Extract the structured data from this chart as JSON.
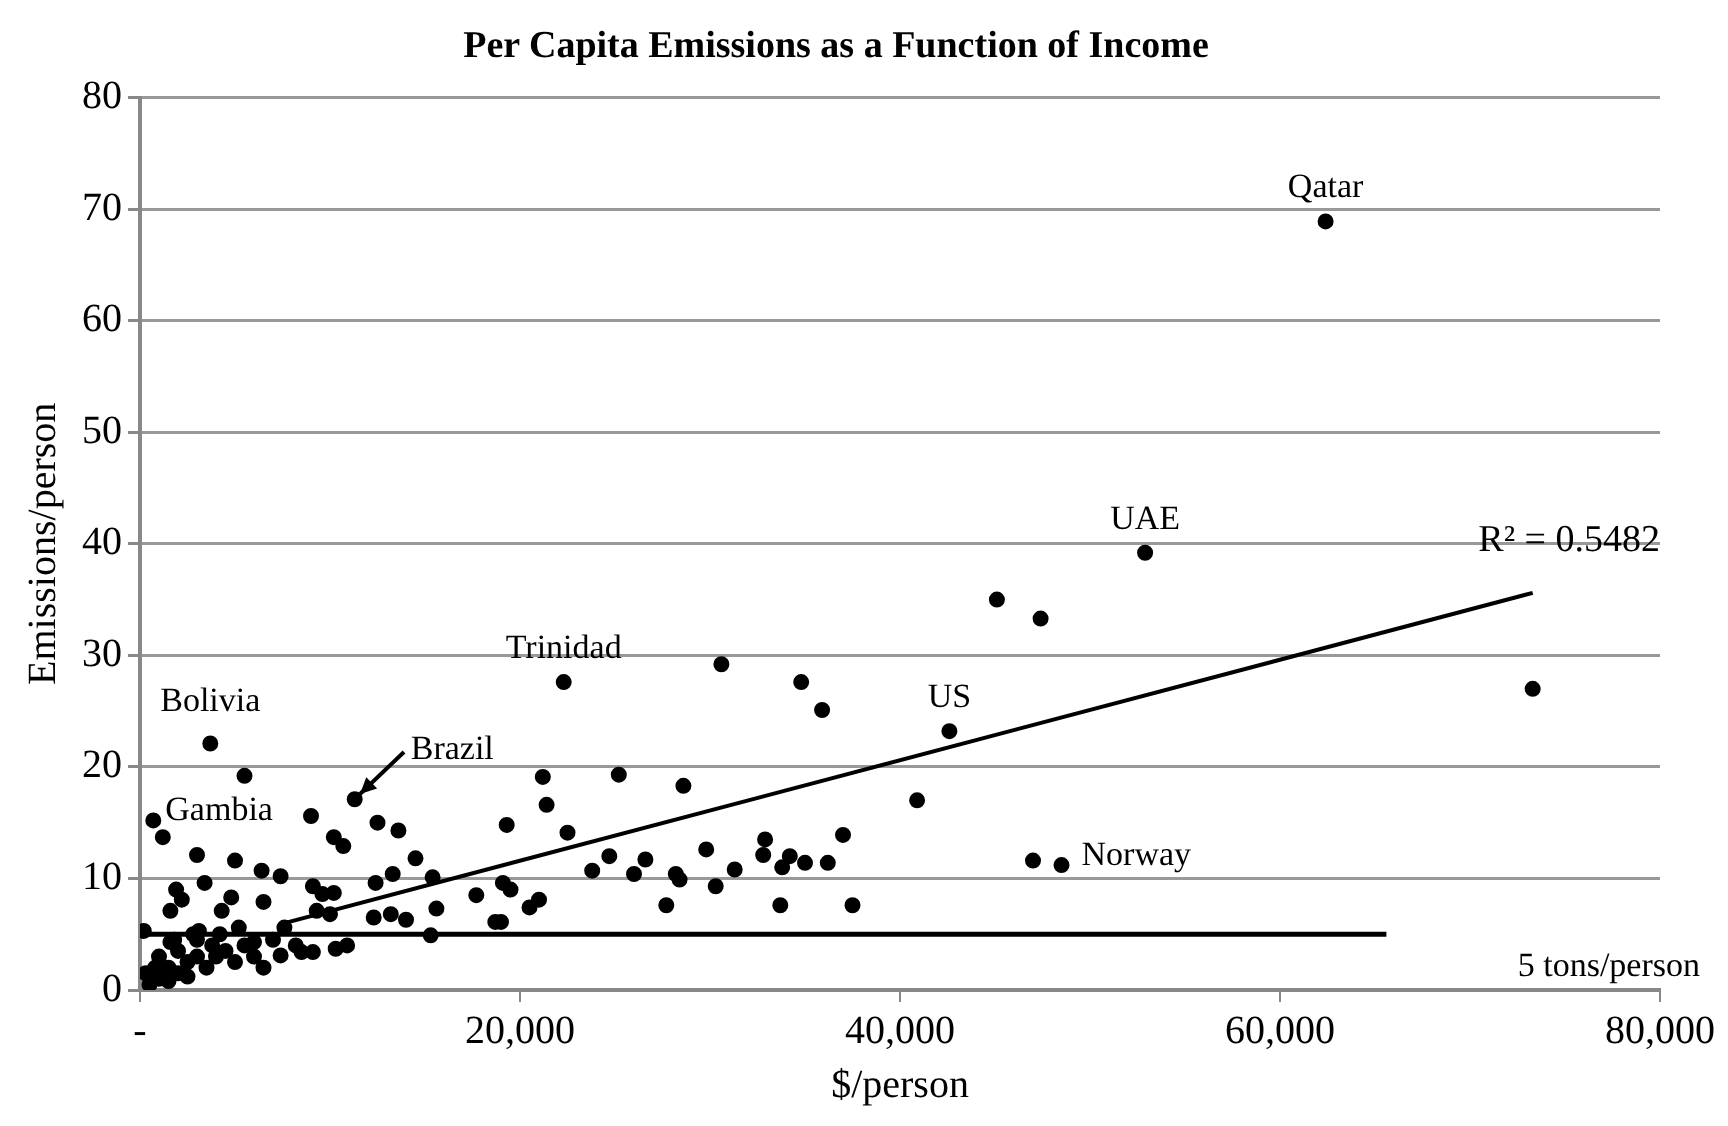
{
  "chart_data": {
    "type": "scatter",
    "title": "Per Capita Emissions as a Function of Income",
    "xlabel": "$/person",
    "ylabel": "Emissions/person",
    "xlim": [
      0,
      80000
    ],
    "xticks": [
      {
        "value": 0,
        "label": "-"
      },
      {
        "value": 20000,
        "label": "20,000"
      },
      {
        "value": 40000,
        "label": "40,000"
      },
      {
        "value": 60000,
        "label": "60,000"
      },
      {
        "value": 80000,
        "label": "80,000"
      }
    ],
    "ylim": [
      0,
      80
    ],
    "yticks": [
      0,
      10,
      20,
      30,
      40,
      50,
      60,
      70,
      80
    ],
    "grid": "y",
    "legend": false,
    "series": [
      {
        "color": "#000000",
        "marker": "circle",
        "x": [
          62400,
          52900,
          45100,
          47400,
          73300,
          42600,
          40900,
          47000,
          48500,
          37500,
          22300,
          30600,
          34800,
          35900,
          21200,
          25200,
          28600,
          21400,
          19300,
          22500,
          24700,
          26600,
          23800,
          26000,
          28200,
          28400,
          29800,
          31300,
          30300,
          27700,
          32900,
          32800,
          33800,
          34200,
          35000,
          36200,
          37000,
          33700,
          17700,
          19100,
          19500,
          20500,
          21000,
          18700,
          19000,
          3700,
          5500,
          11300,
          700,
          9000,
          1200,
          10200,
          10700,
          12500,
          13600,
          3000,
          5000,
          6400,
          7400,
          14500,
          3400,
          1900,
          2200,
          1600,
          4800,
          4300,
          6500,
          9100,
          9600,
          10200,
          9300,
          10000,
          12400,
          13300,
          15400,
          12300,
          13200,
          14000,
          15600,
          15300,
          200,
          3100,
          5200,
          7600,
          1600,
          3800,
          6000,
          8200,
          9100,
          10300,
          10900,
          7400,
          8500,
          1000,
          1500,
          2000,
          2500,
          3000,
          500,
          1000,
          2000,
          3500,
          4000,
          800,
          1500,
          2500,
          3000,
          4500,
          5000,
          6000,
          300,
          1800,
          2800,
          4200,
          5500,
          7000,
          6500
        ],
        "values": [
          68.9,
          39.2,
          35.0,
          33.3,
          27.0,
          23.2,
          17.0,
          11.6,
          11.2,
          7.6,
          27.6,
          29.2,
          27.6,
          25.1,
          19.1,
          19.3,
          18.3,
          16.6,
          14.8,
          14.1,
          12.0,
          11.7,
          10.7,
          10.4,
          10.4,
          9.9,
          12.6,
          10.8,
          9.3,
          7.6,
          13.5,
          12.1,
          11.0,
          12.0,
          11.4,
          11.4,
          13.9,
          7.6,
          8.5,
          9.6,
          9.0,
          7.4,
          8.1,
          6.1,
          6.1,
          22.1,
          19.2,
          17.1,
          15.2,
          15.6,
          13.7,
          13.7,
          12.9,
          15.0,
          14.3,
          12.1,
          11.6,
          10.7,
          10.2,
          11.8,
          9.6,
          9.0,
          8.1,
          7.1,
          8.3,
          7.1,
          7.9,
          9.3,
          8.6,
          8.7,
          7.1,
          6.8,
          9.6,
          10.4,
          10.1,
          6.5,
          6.8,
          6.3,
          7.3,
          4.9,
          5.3,
          5.3,
          5.6,
          5.6,
          4.3,
          4.0,
          4.3,
          4.0,
          3.4,
          3.7,
          4.0,
          3.1,
          3.4,
          1.0,
          2.0,
          1.5,
          2.5,
          3.0,
          0.5,
          3.0,
          3.5,
          2.0,
          3.0,
          2.0,
          0.8,
          1.2,
          4.5,
          3.5,
          2.5,
          3.0,
          1.5,
          4.5,
          5.0,
          5.0,
          4.0,
          4.5,
          2.0
        ]
      },
      {
        "type": "line",
        "marker": "none",
        "color": "#000000",
        "x": [
          7600,
          73300
        ],
        "values": [
          6.0,
          35.6
        ]
      }
    ],
    "ref_lines": [
      {
        "axis": "y",
        "value": 5,
        "label": "5 tons/person",
        "color": "#000000"
      }
    ],
    "annotations": [
      {
        "text": "Qatar",
        "x": 62400,
        "y": 68.9
      },
      {
        "text": "UAE",
        "x": 52900,
        "y": 39.2
      },
      {
        "text": "US",
        "x": 42600,
        "y": 23.2
      },
      {
        "text": "Norway",
        "x": 48500,
        "y": 11.2
      },
      {
        "text": "Trinidad",
        "x": 22300,
        "y": 27.6
      },
      {
        "text": "Bolivia",
        "x": 3700,
        "y": 22.1
      },
      {
        "text": "Gambia",
        "x": 700,
        "y": 15.2
      },
      {
        "text": "Brazil",
        "x": 11300,
        "y": 17.1
      },
      "R² = 0.5482"
    ]
  }
}
